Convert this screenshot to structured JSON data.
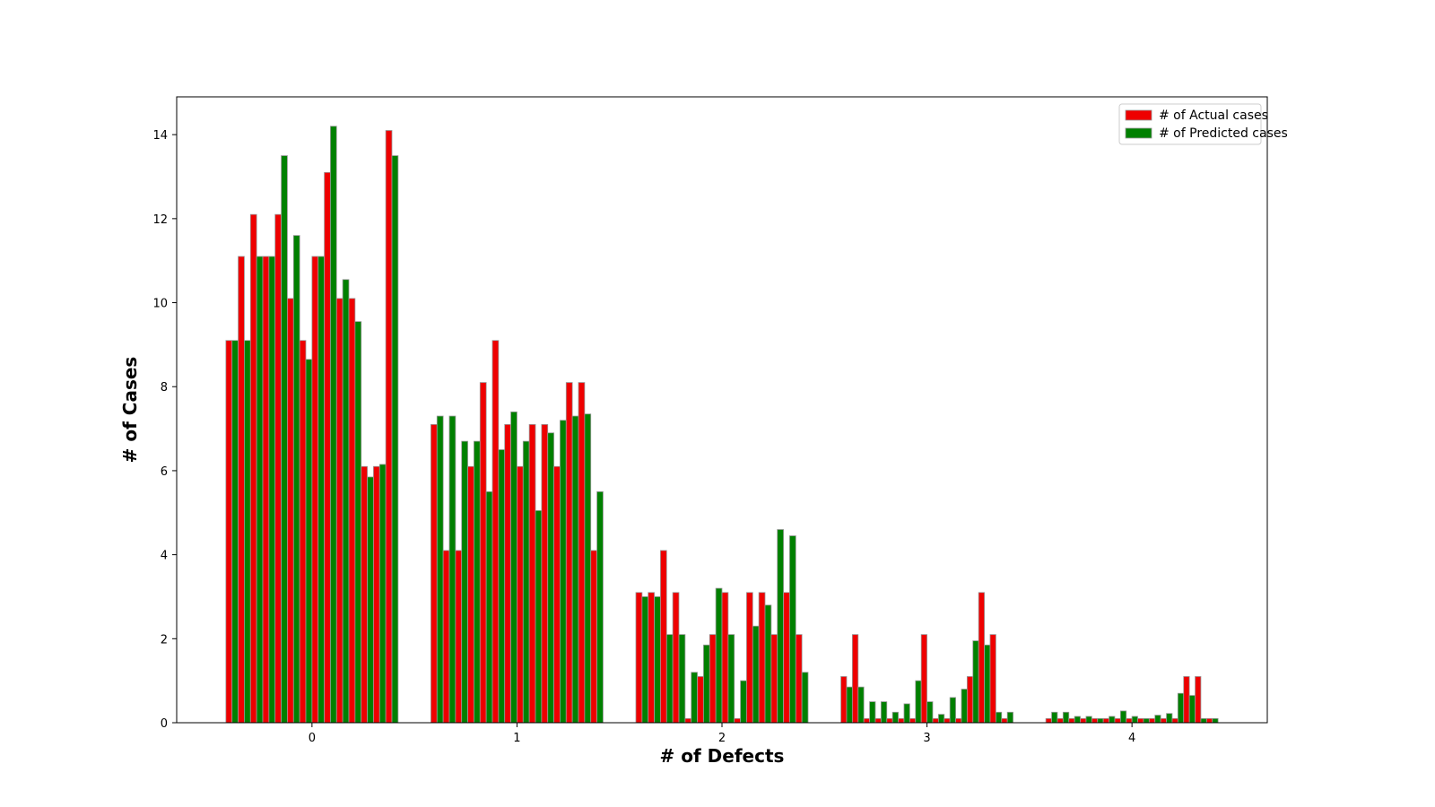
{
  "chart_data": {
    "type": "bar",
    "xlabel": "# of Defects",
    "ylabel": "# of Cases",
    "ylim": [
      0,
      14.9
    ],
    "xlim": [
      -0.66,
      4.66
    ],
    "xticks": [
      0,
      1,
      2,
      3,
      4
    ],
    "yticks": [
      0,
      2,
      4,
      6,
      8,
      10,
      12,
      14
    ],
    "legend_position": "top-right",
    "colors": {
      "actual": "#ee0000",
      "predicted": "#008000",
      "edge": "#999999"
    },
    "series": [
      {
        "name": "# of Actual cases",
        "key": "actual",
        "groups": [
          [
            9.1,
            11.1,
            12.1,
            11.1,
            12.1,
            10.1,
            9.1,
            11.1,
            13.1,
            10.1,
            10.1,
            6.1,
            6.1,
            14.1
          ],
          [
            7.1,
            4.1,
            4.1,
            6.1,
            8.1,
            9.1,
            7.1,
            6.1,
            7.1,
            7.1,
            6.1,
            8.1,
            8.1,
            4.1
          ],
          [
            3.1,
            3.1,
            4.1,
            3.1,
            0.1,
            1.1,
            2.1,
            3.1,
            0.1,
            3.1,
            3.1,
            2.1,
            3.1,
            2.1
          ],
          [
            1.1,
            2.1,
            0.1,
            0.1,
            0.1,
            0.1,
            0.1,
            2.1,
            0.1,
            0.1,
            0.1,
            1.1,
            3.1,
            2.1,
            0.1
          ],
          [
            0.1,
            0.1,
            0.1,
            0.1,
            0.1,
            0.1,
            0.1,
            0.1,
            0.1,
            0.1,
            0.1,
            0.1,
            1.1,
            1.1,
            0.1
          ]
        ]
      },
      {
        "name": "# of Predicted cases",
        "key": "predicted",
        "groups": [
          [
            9.1,
            9.1,
            11.1,
            11.1,
            13.5,
            11.6,
            8.65,
            11.1,
            14.2,
            10.55,
            9.55,
            5.85,
            6.15,
            13.5
          ],
          [
            7.3,
            7.3,
            6.7,
            6.7,
            5.5,
            6.5,
            7.4,
            6.7,
            5.05,
            6.9,
            7.2,
            7.3,
            7.35,
            5.5
          ],
          [
            3.0,
            3.0,
            2.1,
            2.1,
            1.2,
            1.85,
            3.2,
            2.1,
            1.0,
            2.3,
            2.8,
            4.6,
            4.45,
            1.2
          ],
          [
            0.85,
            0.85,
            0.5,
            0.5,
            0.25,
            0.45,
            1.0,
            0.5,
            0.2,
            0.6,
            0.8,
            1.95,
            1.85,
            0.25,
            0.25
          ],
          [
            0.25,
            0.25,
            0.15,
            0.15,
            0.1,
            0.15,
            0.28,
            0.15,
            0.1,
            0.18,
            0.22,
            0.7,
            0.65,
            0.1,
            0.1
          ]
        ]
      }
    ]
  }
}
